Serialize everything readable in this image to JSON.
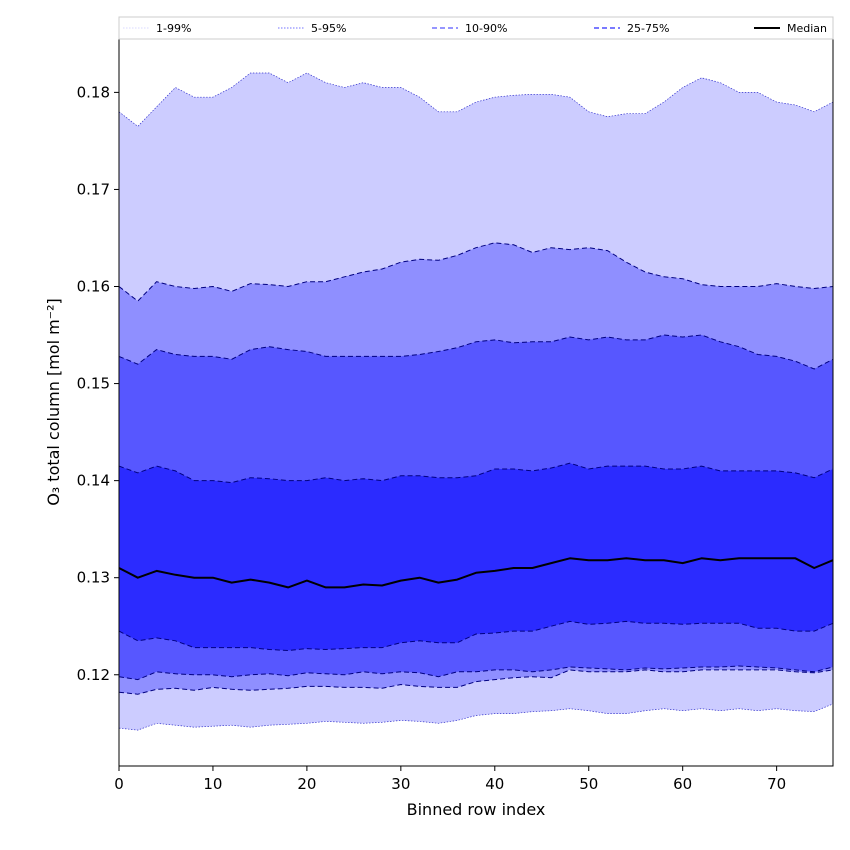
{
  "chart_data": {
    "type": "area",
    "title": "",
    "xlabel": "Binned row index",
    "ylabel": "O₃ total column [mol m⁻²]",
    "xlim": [
      0,
      76
    ],
    "ylim": [
      0.1106,
      0.1855
    ],
    "xticks": [
      0,
      10,
      20,
      30,
      40,
      50,
      60,
      70
    ],
    "yticks": [
      0.12,
      0.13,
      0.14,
      0.15,
      0.16,
      0.17,
      0.18
    ],
    "ytick_labels": [
      "0.12",
      "0.13",
      "0.14",
      "0.15",
      "0.16",
      "0.17",
      "0.18"
    ],
    "legend": {
      "placement": "top",
      "entries": [
        {
          "label": "1-99%",
          "color": "#ccccff",
          "style": "dotted"
        },
        {
          "label": "5-95%",
          "color": "#8f8fff",
          "style": "dotted"
        },
        {
          "label": "10-90%",
          "color": "#5757ff",
          "style": "dashed"
        },
        {
          "label": "25-75%",
          "color": "#2b2bff",
          "style": "dashed"
        },
        {
          "label": "Median",
          "color": "#000000",
          "style": "solid"
        }
      ]
    },
    "x_anchor": [
      0,
      2,
      4,
      6,
      8,
      10,
      12,
      14,
      16,
      18,
      20,
      22,
      24,
      26,
      28,
      30,
      32,
      34,
      36,
      38,
      40,
      42,
      44,
      46,
      48,
      50,
      52,
      54,
      56,
      58,
      60,
      62,
      64,
      66,
      68,
      70,
      72,
      74,
      76
    ],
    "bands": [
      {
        "name": "1-99%",
        "fill": "#ccccff",
        "edge": "#3333cc",
        "edge_style": "dotted",
        "upper": [
          0.178,
          0.1765,
          0.1785,
          0.1805,
          0.1795,
          0.1795,
          0.1805,
          0.182,
          0.182,
          0.181,
          0.182,
          0.181,
          0.1805,
          0.181,
          0.1805,
          0.1805,
          0.1795,
          0.178,
          0.178,
          0.179,
          0.1795,
          0.1797,
          0.1798,
          0.1798,
          0.1795,
          0.178,
          0.1775,
          0.1778,
          0.1778,
          0.179,
          0.1805,
          0.1815,
          0.181,
          0.18,
          0.18,
          0.179,
          0.1787,
          0.178,
          0.179
        ],
        "lower": [
          0.1145,
          0.1143,
          0.115,
          0.1148,
          0.1146,
          0.1147,
          0.1148,
          0.1146,
          0.1148,
          0.1149,
          0.115,
          0.1152,
          0.1151,
          0.115,
          0.1151,
          0.1153,
          0.1152,
          0.115,
          0.1153,
          0.1158,
          0.116,
          0.116,
          0.1162,
          0.1163,
          0.1165,
          0.1163,
          0.116,
          0.116,
          0.1163,
          0.1165,
          0.1163,
          0.1165,
          0.1163,
          0.1165,
          0.1163,
          0.1165,
          0.1163,
          0.1162,
          0.117
        ]
      },
      {
        "name": "5-95%",
        "fill": "#8f8fff",
        "edge": "#000080",
        "edge_style": "dashed",
        "upper": [
          0.16,
          0.1585,
          0.1605,
          0.16,
          0.1598,
          0.16,
          0.1595,
          0.1603,
          0.1602,
          0.16,
          0.1605,
          0.1605,
          0.161,
          0.1615,
          0.1618,
          0.1625,
          0.1628,
          0.1627,
          0.1632,
          0.164,
          0.1645,
          0.1643,
          0.1635,
          0.164,
          0.1638,
          0.164,
          0.1637,
          0.1625,
          0.1615,
          0.161,
          0.1608,
          0.1602,
          0.16,
          0.16,
          0.16,
          0.1603,
          0.16,
          0.1598,
          0.16
        ],
        "lower": [
          0.1182,
          0.118,
          0.1185,
          0.1186,
          0.1184,
          0.1187,
          0.1185,
          0.1184,
          0.1185,
          0.1186,
          0.1188,
          0.1188,
          0.1187,
          0.1187,
          0.1186,
          0.119,
          0.1188,
          0.1187,
          0.1187,
          0.1193,
          0.1195,
          0.1197,
          0.1198,
          0.1197,
          0.1205,
          0.1203,
          0.1203,
          0.1203,
          0.1205,
          0.1203,
          0.1203,
          0.1205,
          0.1205,
          0.1205,
          0.1205,
          0.1205,
          0.1203,
          0.1202,
          0.1205
        ]
      },
      {
        "name": "10-90%",
        "fill": "#5757ff",
        "edge": "#000080",
        "edge_style": "dashed",
        "upper": [
          0.1528,
          0.152,
          0.1535,
          0.153,
          0.1528,
          0.1528,
          0.1525,
          0.1535,
          0.1538,
          0.1535,
          0.1533,
          0.1528,
          0.1528,
          0.1528,
          0.1528,
          0.1528,
          0.153,
          0.1533,
          0.1537,
          0.1543,
          0.1545,
          0.1542,
          0.1543,
          0.1543,
          0.1548,
          0.1545,
          0.1548,
          0.1545,
          0.1545,
          0.155,
          0.1548,
          0.155,
          0.1543,
          0.1538,
          0.153,
          0.1528,
          0.1523,
          0.1515,
          0.1525
        ],
        "lower": [
          0.1198,
          0.1195,
          0.1203,
          0.1201,
          0.12,
          0.12,
          0.1198,
          0.12,
          0.1201,
          0.1199,
          0.1202,
          0.1201,
          0.12,
          0.1203,
          0.1201,
          0.1203,
          0.1202,
          0.1198,
          0.1203,
          0.1203,
          0.1205,
          0.1205,
          0.1203,
          0.1205,
          0.1208,
          0.1207,
          0.1206,
          0.1205,
          0.1207,
          0.1206,
          0.1207,
          0.1208,
          0.1208,
          0.1209,
          0.1208,
          0.1207,
          0.1205,
          0.1203,
          0.1208
        ]
      },
      {
        "name": "25-75%",
        "fill": "#2b2bff",
        "edge": "#000080",
        "edge_style": "dashed",
        "upper": [
          0.1415,
          0.1408,
          0.1415,
          0.141,
          0.14,
          0.14,
          0.1398,
          0.1403,
          0.1402,
          0.14,
          0.14,
          0.1403,
          0.14,
          0.1402,
          0.14,
          0.1405,
          0.1405,
          0.1403,
          0.1403,
          0.1405,
          0.1412,
          0.1412,
          0.141,
          0.1413,
          0.1418,
          0.1412,
          0.1415,
          0.1415,
          0.1415,
          0.1412,
          0.1412,
          0.1415,
          0.141,
          0.141,
          0.141,
          0.141,
          0.1408,
          0.1403,
          0.1412
        ],
        "lower": [
          0.1245,
          0.1235,
          0.1238,
          0.1235,
          0.1228,
          0.1228,
          0.1228,
          0.1228,
          0.1226,
          0.1225,
          0.1227,
          0.1226,
          0.1227,
          0.1228,
          0.1228,
          0.1233,
          0.1235,
          0.1233,
          0.1233,
          0.1242,
          0.1243,
          0.1245,
          0.1245,
          0.125,
          0.1255,
          0.1252,
          0.1253,
          0.1255,
          0.1253,
          0.1253,
          0.1252,
          0.1253,
          0.1253,
          0.1253,
          0.1248,
          0.1248,
          0.1245,
          0.1245,
          0.1253
        ]
      }
    ],
    "median": {
      "name": "Median",
      "color": "#000000",
      "values": [
        0.131,
        0.13,
        0.1307,
        0.1303,
        0.13,
        0.13,
        0.1295,
        0.1298,
        0.1295,
        0.129,
        0.1297,
        0.129,
        0.129,
        0.1293,
        0.1292,
        0.1297,
        0.13,
        0.1295,
        0.1298,
        0.1305,
        0.1307,
        0.131,
        0.131,
        0.1315,
        0.132,
        0.1318,
        0.1318,
        0.132,
        0.1318,
        0.1318,
        0.1315,
        0.132,
        0.1318,
        0.132,
        0.132,
        0.132,
        0.132,
        0.131,
        0.1318
      ]
    }
  }
}
